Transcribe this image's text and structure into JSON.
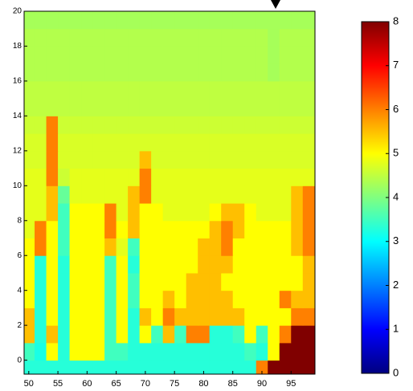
{
  "chart_data": {
    "type": "heatmap",
    "x": [
      50,
      52,
      54,
      56,
      58,
      60,
      62,
      64,
      66,
      68,
      70,
      72,
      74,
      76,
      78,
      80,
      82,
      84,
      86,
      88,
      90,
      92,
      94,
      96,
      98
    ],
    "y": [
      -0.5,
      0.5,
      1.5,
      2.5,
      3.5,
      4.5,
      5.5,
      6.5,
      7.5,
      8.5,
      9.5,
      10.5,
      11.5,
      12.5,
      13.5,
      14.5,
      15.5,
      16.5,
      17.5,
      18.5,
      19.5
    ],
    "z": [
      [
        3.3,
        3.3,
        3.3,
        3.3,
        3.3,
        3.3,
        3.3,
        3.3,
        3.3,
        3.3,
        3.3,
        3.3,
        3.3,
        3.3,
        3.3,
        3.3,
        3.3,
        3.3,
        3.3,
        3.3,
        6,
        8,
        8,
        8,
        8
      ],
      [
        3.5,
        3.2,
        5,
        3.3,
        5,
        5,
        5,
        3.5,
        3.5,
        3.3,
        3.3,
        3.3,
        3.3,
        3.3,
        3.3,
        3.3,
        3.3,
        3.3,
        3.3,
        3.5,
        3.3,
        5,
        8,
        8,
        8
      ],
      [
        5.5,
        3.3,
        5.5,
        3.3,
        5,
        5,
        5,
        3.5,
        5,
        3.3,
        5,
        3.5,
        5.5,
        3.5,
        6,
        6,
        3.3,
        3.3,
        3.5,
        5,
        3.5,
        5,
        6,
        8,
        8
      ],
      [
        5.5,
        3.3,
        5,
        3.3,
        5,
        5,
        5,
        3.5,
        5,
        3.3,
        5.5,
        5,
        6,
        5.5,
        5.5,
        5.5,
        5.5,
        5.5,
        5.5,
        5,
        5,
        5,
        5,
        6,
        6
      ],
      [
        5,
        3.3,
        5,
        3.3,
        5,
        5,
        5,
        3.5,
        5,
        3.5,
        5,
        5,
        5.5,
        5,
        5.5,
        5.5,
        5.5,
        5.5,
        5,
        5,
        5,
        5,
        6,
        5.5,
        5.5
      ],
      [
        5,
        3.3,
        5,
        3.3,
        5,
        5,
        5,
        3.5,
        5,
        3.5,
        5,
        5,
        5,
        5,
        5.5,
        5.5,
        5.5,
        5,
        5,
        5,
        5,
        5,
        5,
        5,
        5.5
      ],
      [
        5,
        3.3,
        5,
        3.3,
        5,
        5,
        5,
        3.5,
        5,
        3.3,
        5,
        5,
        5,
        5,
        5,
        5.5,
        5.5,
        5.5,
        5,
        5,
        5,
        5,
        5,
        5,
        5.5
      ],
      [
        5,
        6,
        5,
        3.5,
        5,
        5,
        5,
        5.5,
        4.8,
        3.5,
        5,
        5,
        5,
        5,
        5,
        5.5,
        5.5,
        6,
        5,
        5,
        5,
        5,
        5,
        5.5,
        6
      ],
      [
        4.8,
        6,
        5,
        3.5,
        5,
        5,
        5,
        6,
        5,
        5.5,
        5,
        5,
        5,
        5,
        5,
        5,
        5.5,
        6,
        5.5,
        5,
        5,
        5,
        5,
        5.5,
        6
      ],
      [
        4.8,
        4.8,
        5.5,
        3.5,
        5,
        5,
        5,
        6,
        4.8,
        5.5,
        5,
        5,
        4.8,
        4.8,
        4.8,
        4.8,
        5,
        5.5,
        5.5,
        5,
        4.8,
        4.8,
        4.8,
        5.5,
        6
      ],
      [
        4.8,
        4.8,
        5.5,
        3.8,
        4.8,
        4.8,
        4.8,
        4.8,
        4.8,
        5.5,
        6,
        4.8,
        4.8,
        4.8,
        4.8,
        4.8,
        4.8,
        4.8,
        4.8,
        4.8,
        4.8,
        4.8,
        4.8,
        5.5,
        6
      ],
      [
        4.8,
        4.8,
        6,
        4.6,
        4.8,
        4.8,
        4.8,
        4.8,
        4.8,
        4.8,
        6,
        4.8,
        4.8,
        4.8,
        4.8,
        4.8,
        4.8,
        4.8,
        4.8,
        4.8,
        4.8,
        4.8,
        4.8,
        4.8,
        4.8
      ],
      [
        4.7,
        4.7,
        6,
        4.7,
        4.7,
        4.7,
        4.7,
        4.7,
        4.7,
        4.7,
        5.5,
        4.7,
        4.7,
        4.7,
        4.7,
        4.7,
        4.7,
        4.7,
        4.7,
        4.7,
        4.7,
        4.7,
        4.7,
        4.7,
        4.7
      ],
      [
        4.7,
        4.7,
        6,
        4.7,
        4.7,
        4.7,
        4.7,
        4.7,
        4.7,
        4.7,
        4.7,
        4.7,
        4.7,
        4.7,
        4.7,
        4.7,
        4.7,
        4.7,
        4.7,
        4.7,
        4.7,
        4.7,
        4.7,
        4.7,
        4.7
      ],
      [
        4.6,
        4.6,
        6,
        4.6,
        4.6,
        4.6,
        4.6,
        4.6,
        4.6,
        4.6,
        4.6,
        4.6,
        4.6,
        4.6,
        4.6,
        4.6,
        4.6,
        4.6,
        4.6,
        4.6,
        4.6,
        4.6,
        4.6,
        4.6,
        4.6
      ],
      [
        4.5,
        4.5,
        4.5,
        4.5,
        4.5,
        4.5,
        4.5,
        4.5,
        4.5,
        4.5,
        4.5,
        4.5,
        4.5,
        4.5,
        4.5,
        4.5,
        4.5,
        4.5,
        4.5,
        4.5,
        4.5,
        4.5,
        4.5,
        4.5,
        4.5
      ],
      [
        4.5,
        4.5,
        4.5,
        4.5,
        4.5,
        4.5,
        4.5,
        4.5,
        4.5,
        4.5,
        4.5,
        4.5,
        4.5,
        4.5,
        4.5,
        4.5,
        4.5,
        4.5,
        4.5,
        4.5,
        4.5,
        4.5,
        4.5,
        4.5,
        4.5
      ],
      [
        4.4,
        4.4,
        4.4,
        4.4,
        4.4,
        4.4,
        4.4,
        4.4,
        4.4,
        4.4,
        4.4,
        4.4,
        4.4,
        4.4,
        4.4,
        4.4,
        4.4,
        4.4,
        4.4,
        4.4,
        4.4,
        4.3,
        4.4,
        4.4,
        4.4
      ],
      [
        4.4,
        4.4,
        4.4,
        4.4,
        4.4,
        4.4,
        4.4,
        4.4,
        4.4,
        4.4,
        4.4,
        4.4,
        4.4,
        4.4,
        4.4,
        4.4,
        4.4,
        4.4,
        4.4,
        4.4,
        4.4,
        4.3,
        4.4,
        4.4,
        4.4
      ],
      [
        4.4,
        4.4,
        4.4,
        4.4,
        4.4,
        4.4,
        4.4,
        4.4,
        4.4,
        4.4,
        4.4,
        4.4,
        4.4,
        4.4,
        4.4,
        4.4,
        4.4,
        4.4,
        4.4,
        4.4,
        4.4,
        4.3,
        4.4,
        4.4,
        4.4
      ],
      [
        4.3,
        4.3,
        4.3,
        4.3,
        4.3,
        4.3,
        4.3,
        4.3,
        4.3,
        4.3,
        4.3,
        4.3,
        4.3,
        4.3,
        4.3,
        4.3,
        4.3,
        4.3,
        4.3,
        4.3,
        4.3,
        4.3,
        4.3,
        4.3,
        4.3
      ]
    ],
    "xlim": [
      49.2,
      99.1
    ],
    "ylim": [
      -0.8,
      20
    ],
    "xticks": [
      50,
      55,
      60,
      65,
      70,
      75,
      80,
      85,
      90,
      95
    ],
    "yticks": [
      0,
      2,
      4,
      6,
      8,
      10,
      12,
      14,
      16,
      18,
      20
    ],
    "zlim": [
      0,
      8
    ],
    "zticks": [
      0,
      1,
      2,
      3,
      4,
      5,
      6,
      7,
      8
    ],
    "colormap": "jet"
  }
}
